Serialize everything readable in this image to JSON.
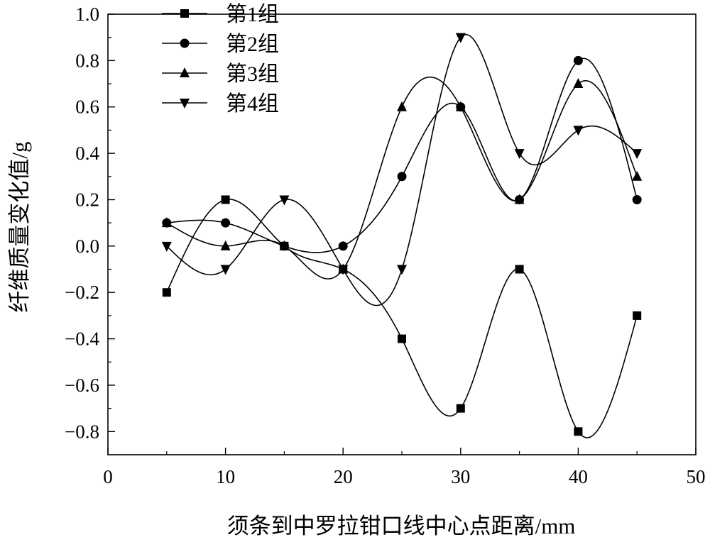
{
  "chart_data": {
    "type": "line",
    "xlabel": "须条到中罗拉钳口线中心点距离/mm",
    "ylabel": "纤维质量变化值/g",
    "xlim": [
      0,
      50
    ],
    "ylim": [
      -0.9,
      1.0
    ],
    "x_ticks": [
      0,
      10,
      20,
      30,
      40,
      50
    ],
    "x_tick_labels": [
      "0",
      "10",
      "20",
      "30",
      "40",
      "50"
    ],
    "y_ticks": [
      -0.8,
      -0.6,
      -0.4,
      -0.2,
      0.0,
      0.2,
      0.4,
      0.6,
      0.8,
      1.0
    ],
    "y_tick_labels": [
      "−0.8",
      "−0.6",
      "−0.4",
      "−0.2",
      "0.0",
      "0.2",
      "0.4",
      "0.6",
      "0.8",
      "1.0"
    ],
    "grid": false,
    "legend_position": "top-left",
    "line_style": "smooth spline",
    "x": [
      5,
      10,
      15,
      20,
      25,
      30,
      35,
      40,
      45
    ],
    "series": [
      {
        "name": "第1组",
        "marker": "square",
        "values": [
          -0.2,
          0.2,
          0.0,
          -0.1,
          -0.4,
          -0.7,
          -0.1,
          -0.8,
          -0.3
        ]
      },
      {
        "name": "第2组",
        "marker": "circle",
        "values": [
          0.1,
          0.1,
          0.0,
          0.0,
          0.3,
          0.6,
          0.2,
          0.8,
          0.2
        ]
      },
      {
        "name": "第3组",
        "marker": "triangle-up",
        "values": [
          0.1,
          0.0,
          0.0,
          -0.1,
          0.6,
          0.6,
          0.2,
          0.7,
          0.3
        ]
      },
      {
        "name": "第4组",
        "marker": "triangle-down",
        "values": [
          0.0,
          -0.1,
          0.2,
          -0.1,
          -0.1,
          0.9,
          0.4,
          0.5,
          0.4
        ]
      }
    ],
    "colors": {
      "line": "#000000",
      "marker": "#000000",
      "background": "#ffffff"
    }
  }
}
